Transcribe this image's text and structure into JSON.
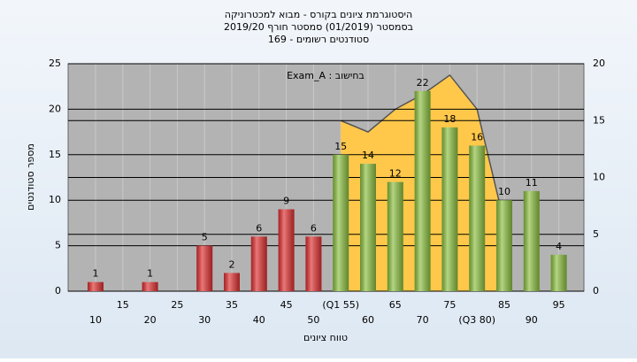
{
  "chart_data": {
    "type": "bar",
    "title": [
      "היסטוגרמת ציונים בקורס - מבוא למכטרוניקה",
      "בסמסטר  (01/2019)  סמסטר חורף 2019/20",
      "סטודנטים רשומים - 169"
    ],
    "x_label": "טווח ציונים",
    "y_label": "מספר סטודנטים",
    "annotation": "בחישוב : Exam_A",
    "categories": [
      "10",
      "15",
      "20",
      "25",
      "30",
      "35",
      "40",
      "45",
      "50",
      "(Q1 55)",
      "60",
      "65",
      "70",
      "75",
      "(Q3 80)",
      "85",
      "90",
      "95"
    ],
    "values": [
      1,
      null,
      1,
      null,
      5,
      2,
      6,
      9,
      6,
      15,
      14,
      12,
      22,
      18,
      16,
      10,
      11,
      4
    ],
    "colors": [
      "#e03030",
      "#e03030",
      "#e03030",
      "#e03030",
      "#e03030",
      "#e03030",
      "#e03030",
      "#e03030",
      "#e03030",
      "#8cc040",
      "#8cc040",
      "#8cc040",
      "#8cc040",
      "#8cc040",
      "#8cc040",
      "#8cc040",
      "#8cc040",
      "#8cc040"
    ],
    "ylim": [
      0,
      25
    ],
    "yticks": [
      0,
      5,
      10,
      15,
      20,
      25
    ],
    "y2lim": [
      0,
      20
    ],
    "y2ticks": [
      0,
      5,
      10,
      15,
      20
    ],
    "area": {
      "axis": "y2",
      "color": "#ffc84a",
      "values": [
        null,
        null,
        null,
        null,
        null,
        null,
        null,
        null,
        null,
        15,
        14,
        16,
        17.3,
        19,
        16,
        6,
        null,
        null
      ]
    },
    "grid": true
  }
}
